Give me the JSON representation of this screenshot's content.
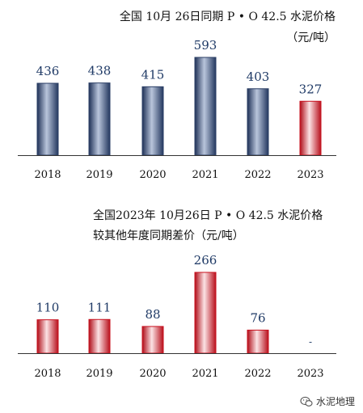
{
  "chart_data": [
    {
      "type": "bar",
      "title": "全国 10月 26日同期 P • O 42.5 水泥价格",
      "subtitle": "（元/吨）",
      "categories": [
        "2018",
        "2019",
        "2020",
        "2021",
        "2022",
        "2023"
      ],
      "values": [
        436,
        438,
        415,
        593,
        403,
        327
      ],
      "value_labels": [
        "436",
        "438",
        "415",
        "593",
        "403",
        "327"
      ],
      "ylim": [
        0,
        620
      ],
      "highlight_index": 5,
      "colors": {
        "normal": "#2b3f66",
        "highlight": "#c8101e"
      }
    },
    {
      "type": "bar",
      "title": "全国2023年 10月26日 P • O 42.5 水泥价格",
      "subtitle": "较其他年度同期差价（元/吨）",
      "categories": [
        "2018",
        "2019",
        "2020",
        "2021",
        "2022",
        "2023"
      ],
      "values": [
        110,
        111,
        88,
        266,
        76,
        null
      ],
      "value_labels": [
        "110",
        "111",
        "88",
        "266",
        "76",
        "-"
      ],
      "ylim": [
        0,
        280
      ],
      "highlight_index": -1,
      "colors": {
        "normal": "#c8101e",
        "highlight": "#c8101e"
      }
    }
  ],
  "watermark": {
    "icon": "wechat-icon",
    "text": "水泥地理"
  }
}
